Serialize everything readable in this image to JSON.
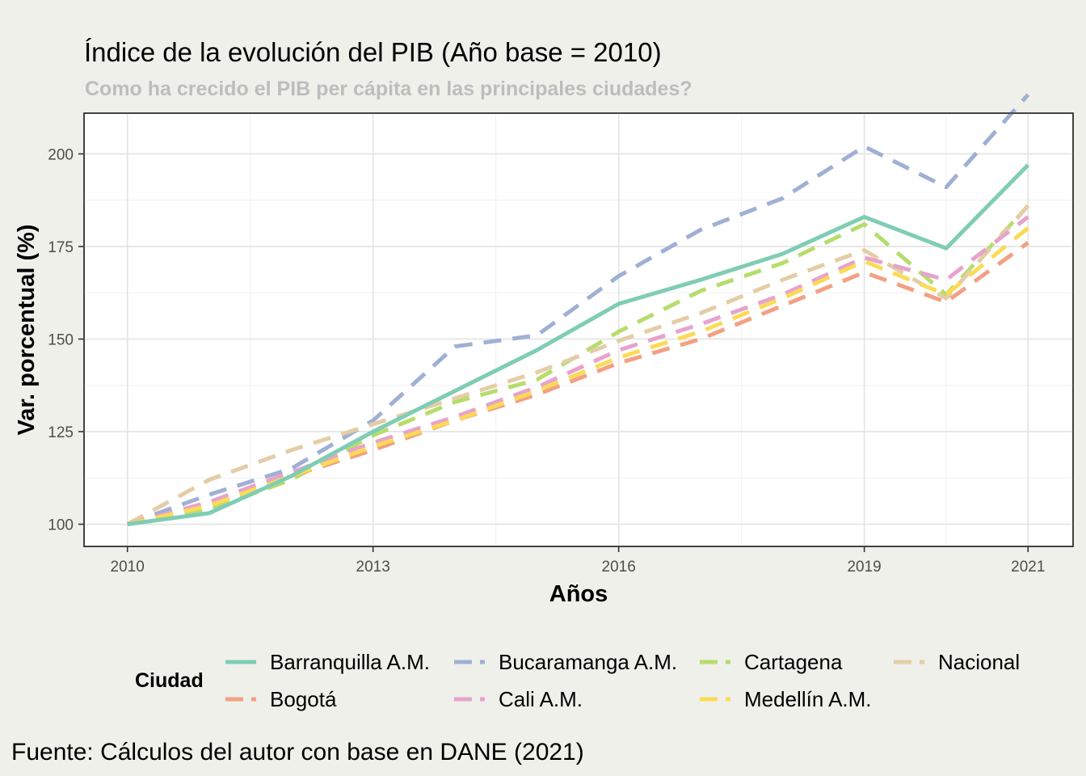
{
  "chart_data": {
    "type": "line",
    "title": "Índice de la evolución del PIB (Año base = 2010)",
    "subtitle": "Como ha crecido el PIB per cápita en las principales ciudades?",
    "xlabel": "Años",
    "ylabel": "Var. porcentual (%)",
    "caption": "Fuente: Cálculos del autor con base en DANE (2021)",
    "x": [
      2010,
      2011,
      2012,
      2013,
      2014,
      2015,
      2016,
      2017,
      2018,
      2019,
      2020,
      2021
    ],
    "xlim": [
      2009.47,
      2021.55
    ],
    "ylim": [
      94,
      211
    ],
    "x_ticks": [
      "2010",
      "2013",
      "2016",
      "2019",
      "2021"
    ],
    "y_ticks": [
      "100",
      "125",
      "150",
      "175",
      "200"
    ],
    "grid": true,
    "legend": {
      "title": "Ciudad",
      "position": "bottom",
      "columns": [
        "Barranquilla A.M.",
        "Bucaramanga A.M.",
        "Cartagena",
        "Nacional",
        "Bogotá",
        "Cali A.M.",
        "Medellín A.M."
      ]
    },
    "series": [
      {
        "name": "Barranquilla A.M.",
        "color": "#7fcdb4",
        "dashed": false,
        "values": [
          100,
          103,
          113,
          125,
          136,
          147,
          159.5,
          166,
          173,
          183,
          174.5,
          197
        ]
      },
      {
        "name": "Bucaramanga A.M.",
        "color": "#9fb0d4",
        "dashed": true,
        "values": [
          100,
          108,
          115,
          128,
          148,
          151,
          167,
          179.5,
          188,
          202,
          191,
          216
        ]
      },
      {
        "name": "Cartagena",
        "color": "#b6dd6c",
        "dashed": true,
        "values": [
          100,
          104,
          112,
          124,
          133,
          139,
          152,
          163,
          170.5,
          181,
          162,
          186
        ]
      },
      {
        "name": "Nacional",
        "color": "#e4cda6",
        "dashed": true,
        "values": [
          100,
          112,
          120,
          127,
          134,
          141,
          149.5,
          157,
          166,
          174,
          161,
          186
        ]
      },
      {
        "name": "Bogotá",
        "color": "#f2a184",
        "dashed": true,
        "values": [
          100,
          105,
          113,
          120,
          128,
          135,
          143.5,
          150,
          159,
          168,
          160,
          176
        ]
      },
      {
        "name": "Cali A.M.",
        "color": "#e7a3cc",
        "dashed": true,
        "values": [
          100,
          106,
          114,
          122,
          129,
          137,
          147,
          154,
          162,
          172,
          166,
          183
        ]
      },
      {
        "name": "Medellín A.M.",
        "color": "#fbdb56",
        "dashed": true,
        "values": [
          100,
          105,
          113,
          121,
          128,
          136,
          145,
          152,
          161,
          171,
          162,
          180
        ]
      }
    ]
  }
}
